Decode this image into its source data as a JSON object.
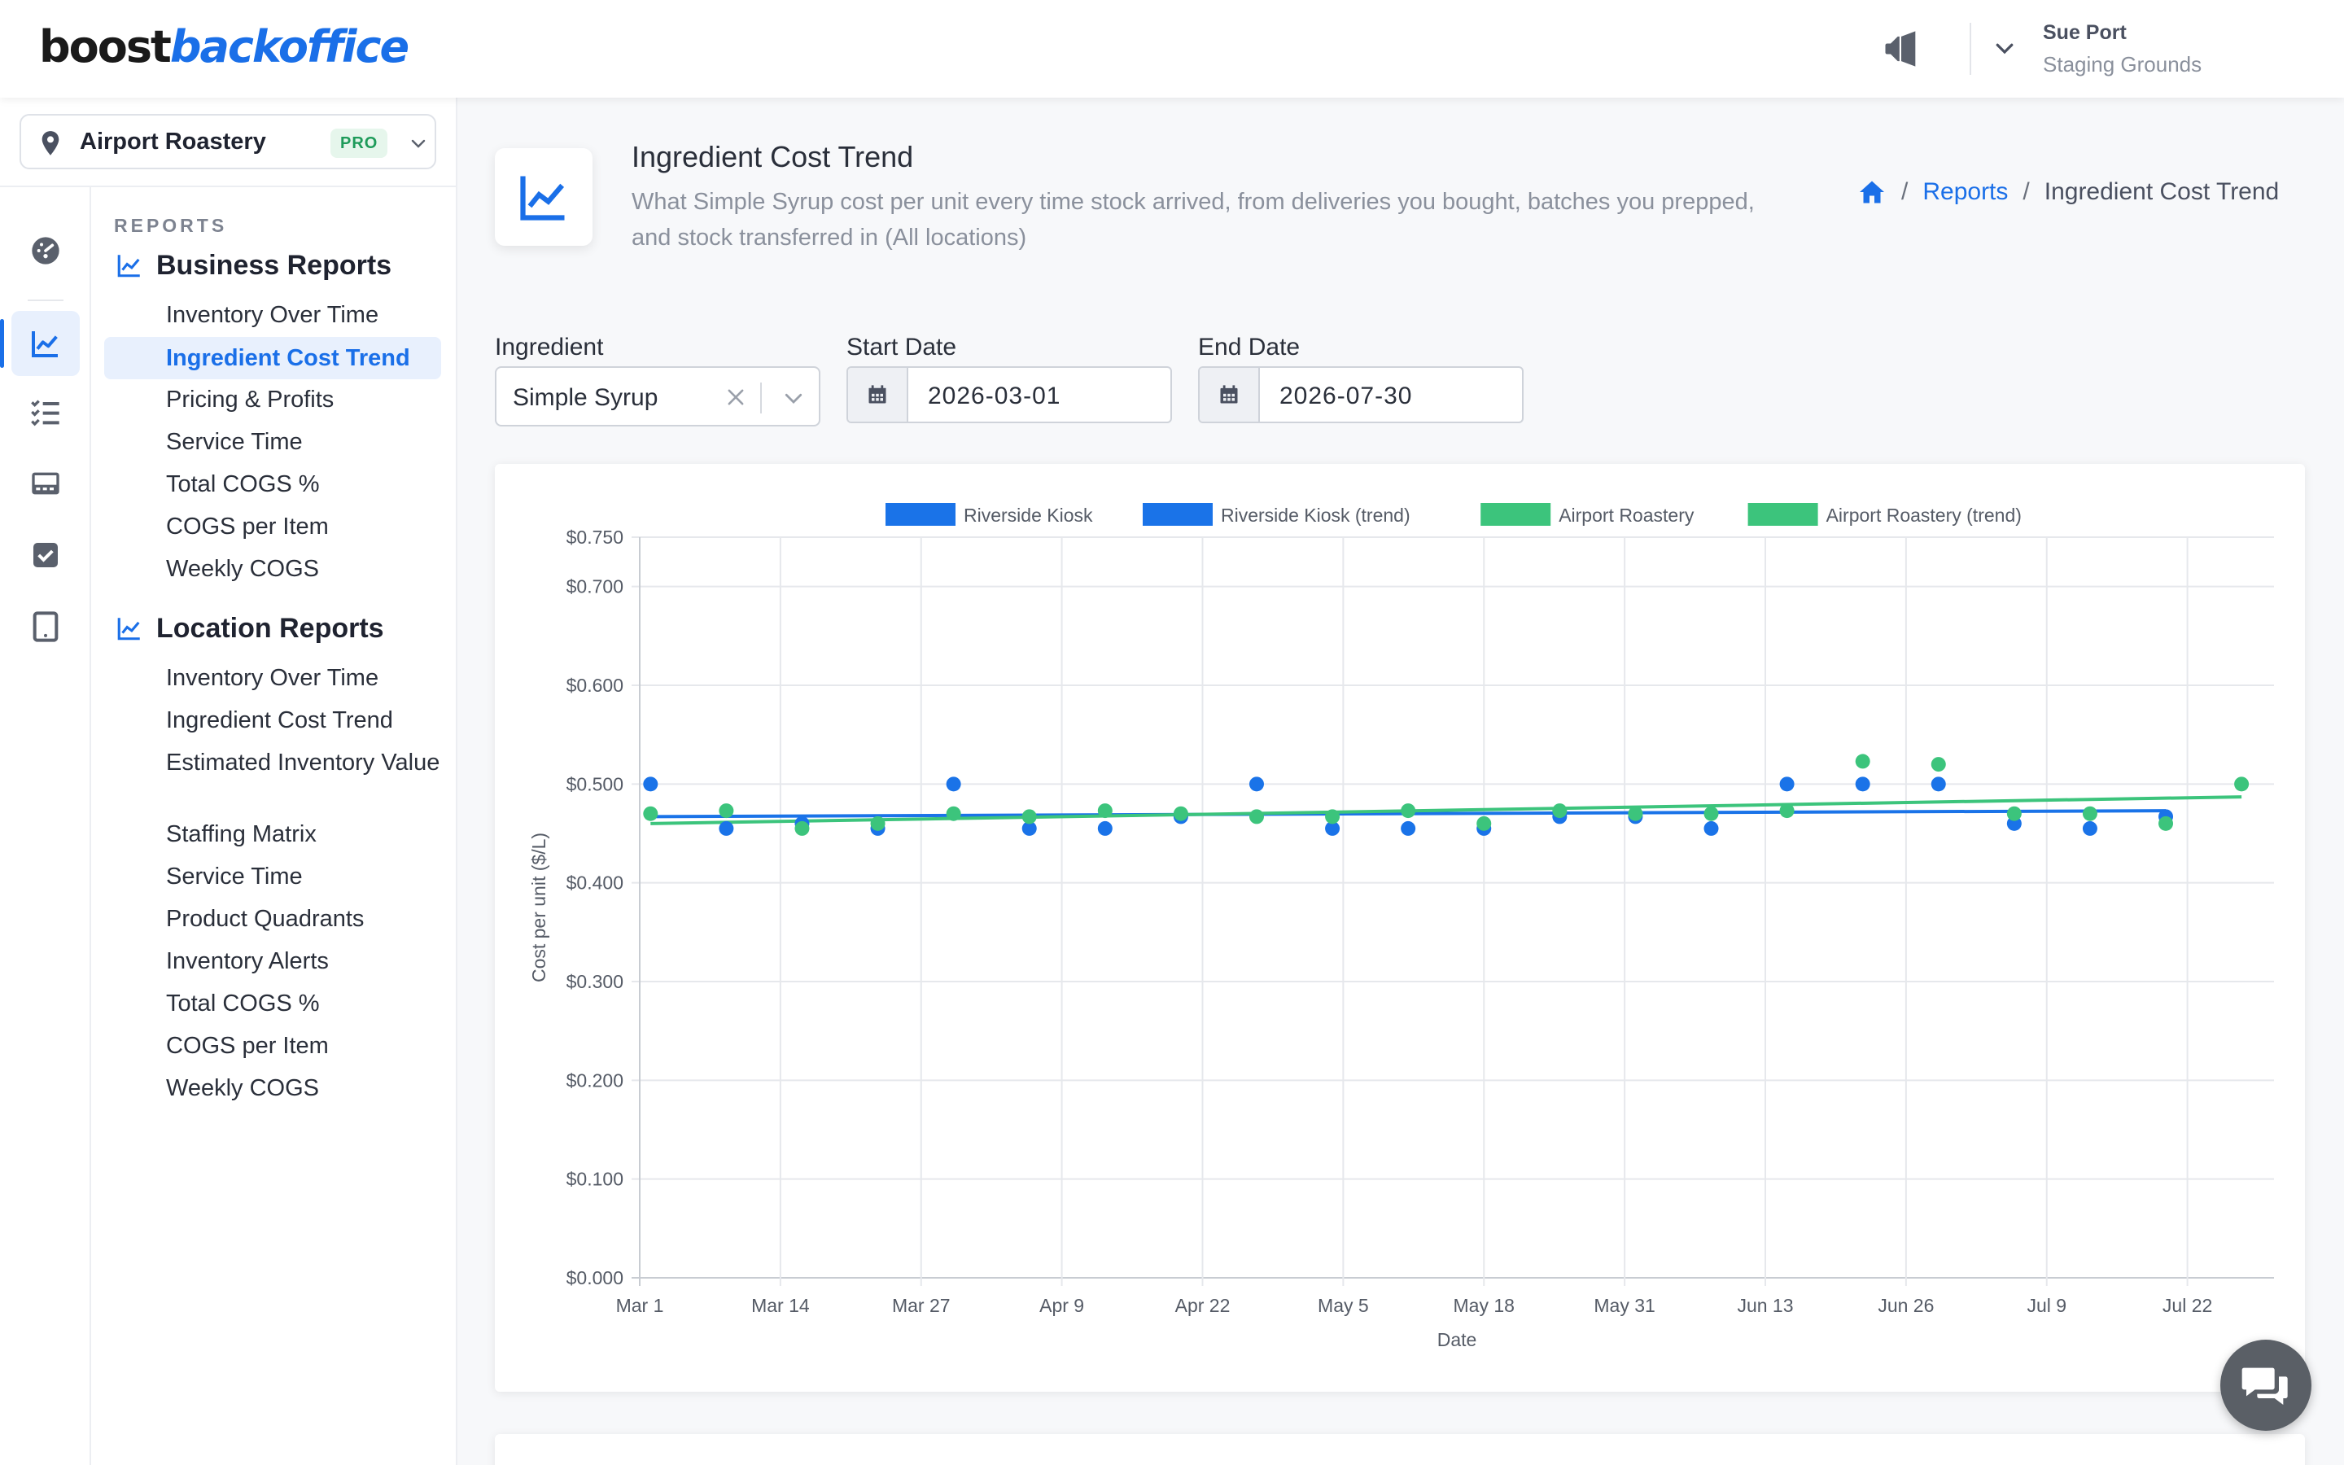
{
  "app": {
    "logo_part1": "boost",
    "logo_part2": "backoffice"
  },
  "header": {
    "user_name": "Sue Port",
    "user_org": "Staging Grounds",
    "icons": [
      "megaphone-icon",
      "chevron-down-icon"
    ]
  },
  "location": {
    "name": "Airport Roastery",
    "badge": "PRO"
  },
  "sidebar": {
    "section_label": "REPORTS",
    "business": {
      "title": "Business Reports",
      "items": [
        "Inventory Over Time",
        "Ingredient Cost Trend",
        "Pricing & Profits",
        "Service Time",
        "Total COGS %",
        "COGS per Item",
        "Weekly COGS"
      ],
      "active_index": 1
    },
    "location_reports": {
      "title": "Location Reports",
      "items": [
        "Inventory Over Time",
        "Ingredient Cost Trend",
        "Estimated Inventory Value",
        "Staffing Matrix",
        "Service Time",
        "Product Quadrants",
        "Inventory Alerts",
        "Total COGS %",
        "COGS per Item",
        "Weekly COGS"
      ]
    },
    "rail_icons": [
      "dashboard-icon",
      "chart-line-icon",
      "checklist-icon",
      "register-icon",
      "checkbox-icon",
      "tablet-icon"
    ]
  },
  "page": {
    "title": "Ingredient Cost Trend",
    "subtitle": "What Simple Syrup cost per unit every time stock arrived, from deliveries you bought, batches you prepped, and stock transferred in (All locations)",
    "breadcrumb": [
      "Reports",
      "Ingredient Cost Trend"
    ]
  },
  "filters": {
    "ingredient_label": "Ingredient",
    "ingredient_value": "Simple Syrup",
    "start_label": "Start Date",
    "start_value": "2026-03-01",
    "end_label": "End Date",
    "end_value": "2026-07-30"
  },
  "chart_data": {
    "type": "scatter",
    "title": "",
    "xlabel": "Date",
    "ylabel": "Cost per unit ($/L)",
    "x_ticks": [
      "Mar 1",
      "Mar 14",
      "Mar 27",
      "Apr 9",
      "Apr 22",
      "May 5",
      "May 18",
      "May 31",
      "Jun 13",
      "Jun 26",
      "Jul 9",
      "Jul 22"
    ],
    "y_ticks": [
      "$0.000",
      "$0.100",
      "$0.200",
      "$0.300",
      "$0.400",
      "$0.500",
      "$0.600",
      "$0.700",
      "$0.750"
    ],
    "ylim": [
      0,
      0.75
    ],
    "xlim": [
      "2026-03-01",
      "2026-07-30"
    ],
    "grid": true,
    "legend_position": "top",
    "series": [
      {
        "name": "Riverside Kiosk",
        "kind": "points",
        "color": "#1a73e8",
        "points": [
          [
            "2026-03-02",
            0.5
          ],
          [
            "2026-03-09",
            0.455
          ],
          [
            "2026-03-16",
            0.46
          ],
          [
            "2026-03-23",
            0.455
          ],
          [
            "2026-03-30",
            0.5
          ],
          [
            "2026-04-06",
            0.455
          ],
          [
            "2026-04-13",
            0.455
          ],
          [
            "2026-04-20",
            0.467
          ],
          [
            "2026-04-27",
            0.5
          ],
          [
            "2026-05-04",
            0.455
          ],
          [
            "2026-05-11",
            0.455
          ],
          [
            "2026-05-18",
            0.455
          ],
          [
            "2026-05-25",
            0.467
          ],
          [
            "2026-06-01",
            0.467
          ],
          [
            "2026-06-08",
            0.455
          ],
          [
            "2026-06-15",
            0.5
          ],
          [
            "2026-06-22",
            0.5
          ],
          [
            "2026-06-29",
            0.5
          ],
          [
            "2026-07-06",
            0.46
          ],
          [
            "2026-07-13",
            0.455
          ],
          [
            "2026-07-20",
            0.467
          ]
        ]
      },
      {
        "name": "Riverside Kiosk (trend)",
        "kind": "line",
        "color": "#1a73e8",
        "points": [
          [
            "2026-03-02",
            0.467
          ],
          [
            "2026-07-20",
            0.473
          ]
        ]
      },
      {
        "name": "Airport Roastery",
        "kind": "points",
        "color": "#3cc47c",
        "points": [
          [
            "2026-03-02",
            0.47
          ],
          [
            "2026-03-09",
            0.473
          ],
          [
            "2026-03-16",
            0.455
          ],
          [
            "2026-03-23",
            0.46
          ],
          [
            "2026-03-30",
            0.47
          ],
          [
            "2026-04-06",
            0.467
          ],
          [
            "2026-04-13",
            0.473
          ],
          [
            "2026-04-20",
            0.47
          ],
          [
            "2026-04-27",
            0.467
          ],
          [
            "2026-05-04",
            0.467
          ],
          [
            "2026-05-11",
            0.473
          ],
          [
            "2026-05-18",
            0.46
          ],
          [
            "2026-05-25",
            0.473
          ],
          [
            "2026-06-01",
            0.47
          ],
          [
            "2026-06-08",
            0.47
          ],
          [
            "2026-06-15",
            0.473
          ],
          [
            "2026-06-22",
            0.523
          ],
          [
            "2026-06-29",
            0.52
          ],
          [
            "2026-07-06",
            0.47
          ],
          [
            "2026-07-13",
            0.47
          ],
          [
            "2026-07-20",
            0.46
          ],
          [
            "2026-07-27",
            0.5
          ]
        ]
      },
      {
        "name": "Airport Roastery (trend)",
        "kind": "line",
        "color": "#3cc47c",
        "points": [
          [
            "2026-03-02",
            0.46
          ],
          [
            "2026-07-27",
            0.487
          ]
        ]
      }
    ]
  }
}
